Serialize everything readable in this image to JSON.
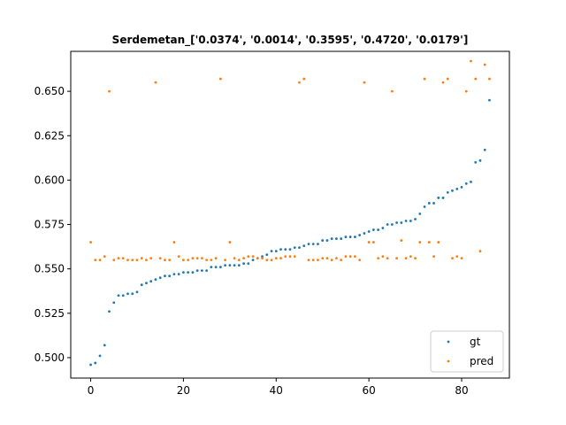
{
  "chart_data": {
    "type": "scatter",
    "title": "Serdemetan_['0.0374', '0.0014', '0.3595', '0.4720', '0.0179']",
    "xlabel": "",
    "ylabel": "",
    "xlim": [
      -4.3,
      90.3
    ],
    "ylim": [
      0.4885,
      0.6725
    ],
    "xticks": [
      0,
      20,
      40,
      60,
      80
    ],
    "xtick_labels": [
      "0",
      "20",
      "40",
      "60",
      "80"
    ],
    "yticks": [
      0.5,
      0.525,
      0.55,
      0.575,
      0.6,
      0.625,
      0.65
    ],
    "ytick_labels": [
      "0.500",
      "0.525",
      "0.550",
      "0.575",
      "0.600",
      "0.625",
      "0.650"
    ],
    "grid": false,
    "legend_position": "lower-right",
    "series": [
      {
        "name": "gt",
        "color": "#1f77b4",
        "x": [
          0,
          1,
          2,
          3,
          4,
          5,
          6,
          7,
          8,
          9,
          10,
          11,
          12,
          13,
          14,
          15,
          16,
          17,
          18,
          19,
          20,
          21,
          22,
          23,
          24,
          25,
          26,
          27,
          28,
          29,
          30,
          31,
          32,
          33,
          34,
          35,
          36,
          37,
          38,
          39,
          40,
          41,
          42,
          43,
          44,
          45,
          46,
          47,
          48,
          49,
          50,
          51,
          52,
          53,
          54,
          55,
          56,
          57,
          58,
          59,
          60,
          61,
          62,
          63,
          64,
          65,
          66,
          67,
          68,
          69,
          70,
          71,
          72,
          73,
          74,
          75,
          76,
          77,
          78,
          79,
          80,
          81,
          82,
          83,
          84,
          85,
          86
        ],
        "y": [
          0.496,
          0.497,
          0.501,
          0.507,
          0.526,
          0.531,
          0.535,
          0.535,
          0.536,
          0.536,
          0.537,
          0.541,
          0.542,
          0.543,
          0.544,
          0.545,
          0.546,
          0.546,
          0.547,
          0.547,
          0.548,
          0.548,
          0.548,
          0.549,
          0.549,
          0.549,
          0.551,
          0.551,
          0.551,
          0.552,
          0.552,
          0.552,
          0.552,
          0.553,
          0.553,
          0.555,
          0.556,
          0.557,
          0.558,
          0.56,
          0.56,
          0.561,
          0.561,
          0.561,
          0.562,
          0.562,
          0.563,
          0.564,
          0.564,
          0.564,
          0.566,
          0.566,
          0.567,
          0.567,
          0.567,
          0.568,
          0.568,
          0.568,
          0.569,
          0.57,
          0.571,
          0.572,
          0.572,
          0.573,
          0.575,
          0.575,
          0.576,
          0.576,
          0.577,
          0.577,
          0.578,
          0.581,
          0.585,
          0.587,
          0.587,
          0.59,
          0.59,
          0.593,
          0.594,
          0.595,
          0.596,
          0.598,
          0.599,
          0.61,
          0.611,
          0.617,
          0.645
        ]
      },
      {
        "name": "pred",
        "color": "#ff7f0e",
        "x": [
          0,
          1,
          2,
          3,
          4,
          5,
          6,
          7,
          8,
          9,
          10,
          11,
          12,
          13,
          14,
          15,
          16,
          17,
          18,
          19,
          20,
          21,
          22,
          23,
          24,
          25,
          26,
          27,
          28,
          29,
          30,
          31,
          32,
          33,
          34,
          35,
          36,
          37,
          38,
          39,
          40,
          41,
          42,
          43,
          44,
          45,
          46,
          47,
          48,
          49,
          50,
          51,
          52,
          53,
          54,
          55,
          56,
          57,
          58,
          59,
          60,
          61,
          62,
          63,
          64,
          65,
          66,
          67,
          68,
          69,
          70,
          71,
          72,
          73,
          74,
          75,
          76,
          77,
          78,
          79,
          80,
          81,
          82,
          83,
          84,
          85,
          86
        ],
        "y": [
          0.565,
          0.555,
          0.555,
          0.557,
          0.65,
          0.555,
          0.556,
          0.556,
          0.555,
          0.555,
          0.555,
          0.556,
          0.555,
          0.556,
          0.655,
          0.556,
          0.555,
          0.555,
          0.565,
          0.557,
          0.555,
          0.555,
          0.556,
          0.556,
          0.556,
          0.555,
          0.555,
          0.556,
          0.657,
          0.555,
          0.565,
          0.556,
          0.555,
          0.556,
          0.557,
          0.557,
          0.556,
          0.556,
          0.555,
          0.555,
          0.556,
          0.556,
          0.557,
          0.557,
          0.557,
          0.655,
          0.657,
          0.555,
          0.555,
          0.555,
          0.556,
          0.556,
          0.555,
          0.556,
          0.555,
          0.557,
          0.557,
          0.557,
          0.555,
          0.655,
          0.565,
          0.565,
          0.556,
          0.557,
          0.556,
          0.65,
          0.556,
          0.566,
          0.556,
          0.557,
          0.556,
          0.565,
          0.657,
          0.565,
          0.557,
          0.565,
          0.655,
          0.657,
          0.556,
          0.557,
          0.556,
          0.65,
          0.667,
          0.657,
          0.56,
          0.665,
          0.657
        ]
      }
    ],
    "legend": [
      {
        "label": "gt",
        "color": "#1f77b4"
      },
      {
        "label": "pred",
        "color": "#ff7f0e"
      }
    ]
  }
}
